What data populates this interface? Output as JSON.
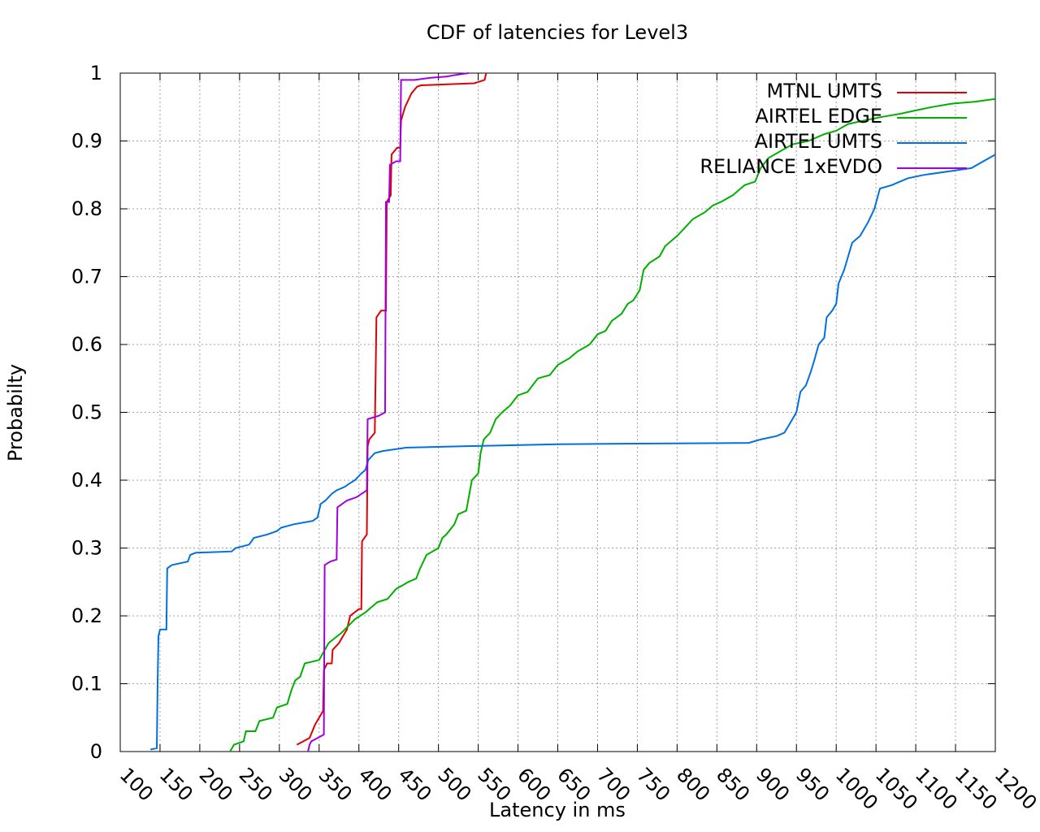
{
  "chart_data": {
    "type": "line",
    "title": "CDF of latencies for Level3",
    "xlabel": "Latency in ms",
    "ylabel": "Probabilty",
    "xlim": [
      100,
      1200
    ],
    "ylim": [
      0,
      1
    ],
    "x_ticks": [
      "100",
      "150",
      "200",
      "250",
      "300",
      "350",
      "400",
      "450",
      "500",
      "550",
      "600",
      "650",
      "700",
      "750",
      "800",
      "850",
      "900",
      "950",
      "1000",
      "1050",
      "1100",
      "1150",
      "1200"
    ],
    "y_ticks": [
      "0",
      "0.1",
      "0.2",
      "0.3",
      "0.4",
      "0.5",
      "0.6",
      "0.7",
      "0.8",
      "0.9",
      "1"
    ],
    "grid": true,
    "legend_position": "top-right",
    "series": [
      {
        "name": "MTNL UMTS",
        "color": "#e00000",
        "points": [
          [
            322,
            0.01
          ],
          [
            338,
            0.02
          ],
          [
            345,
            0.04
          ],
          [
            350,
            0.05
          ],
          [
            355,
            0.06
          ],
          [
            356,
            0.12
          ],
          [
            360,
            0.13
          ],
          [
            366,
            0.13
          ],
          [
            367,
            0.15
          ],
          [
            375,
            0.16
          ],
          [
            380,
            0.17
          ],
          [
            385,
            0.18
          ],
          [
            387,
            0.19
          ],
          [
            389,
            0.2
          ],
          [
            400,
            0.21
          ],
          [
            403,
            0.21
          ],
          [
            404,
            0.31
          ],
          [
            410,
            0.32
          ],
          [
            411,
            0.45
          ],
          [
            413,
            0.46
          ],
          [
            420,
            0.47
          ],
          [
            422,
            0.64
          ],
          [
            428,
            0.65
          ],
          [
            434,
            0.65
          ],
          [
            435,
            0.81
          ],
          [
            440,
            0.82
          ],
          [
            441,
            0.88
          ],
          [
            448,
            0.89
          ],
          [
            452,
            0.89
          ],
          [
            453,
            0.93
          ],
          [
            458,
            0.95
          ],
          [
            462,
            0.96
          ],
          [
            466,
            0.97
          ],
          [
            473,
            0.98
          ],
          [
            478,
            0.982
          ],
          [
            545,
            0.985
          ],
          [
            558,
            0.99
          ],
          [
            560,
            1.0
          ]
        ]
      },
      {
        "name": "AIRTEL EDGE",
        "color": "#00b000",
        "points": [
          [
            238,
            0
          ],
          [
            243,
            0.01
          ],
          [
            255,
            0.015
          ],
          [
            258,
            0.03
          ],
          [
            270,
            0.03
          ],
          [
            275,
            0.045
          ],
          [
            292,
            0.05
          ],
          [
            297,
            0.065
          ],
          [
            310,
            0.07
          ],
          [
            315,
            0.09
          ],
          [
            320,
            0.105
          ],
          [
            326,
            0.11
          ],
          [
            332,
            0.13
          ],
          [
            350,
            0.135
          ],
          [
            362,
            0.16
          ],
          [
            378,
            0.175
          ],
          [
            395,
            0.195
          ],
          [
            408,
            0.205
          ],
          [
            423,
            0.22
          ],
          [
            436,
            0.225
          ],
          [
            447,
            0.24
          ],
          [
            455,
            0.245
          ],
          [
            462,
            0.25
          ],
          [
            472,
            0.255
          ],
          [
            477,
            0.27
          ],
          [
            485,
            0.29
          ],
          [
            500,
            0.3
          ],
          [
            505,
            0.315
          ],
          [
            510,
            0.32
          ],
          [
            520,
            0.335
          ],
          [
            525,
            0.35
          ],
          [
            535,
            0.355
          ],
          [
            542,
            0.4
          ],
          [
            550,
            0.41
          ],
          [
            553,
            0.44
          ],
          [
            557,
            0.46
          ],
          [
            565,
            0.47
          ],
          [
            572,
            0.49
          ],
          [
            580,
            0.5
          ],
          [
            590,
            0.51
          ],
          [
            600,
            0.525
          ],
          [
            612,
            0.53
          ],
          [
            625,
            0.55
          ],
          [
            640,
            0.555
          ],
          [
            650,
            0.57
          ],
          [
            665,
            0.58
          ],
          [
            675,
            0.59
          ],
          [
            690,
            0.6
          ],
          [
            700,
            0.615
          ],
          [
            710,
            0.62
          ],
          [
            718,
            0.635
          ],
          [
            730,
            0.645
          ],
          [
            738,
            0.66
          ],
          [
            745,
            0.665
          ],
          [
            753,
            0.68
          ],
          [
            758,
            0.71
          ],
          [
            765,
            0.72
          ],
          [
            778,
            0.73
          ],
          [
            785,
            0.745
          ],
          [
            800,
            0.76
          ],
          [
            812,
            0.775
          ],
          [
            820,
            0.785
          ],
          [
            835,
            0.795
          ],
          [
            845,
            0.805
          ],
          [
            855,
            0.81
          ],
          [
            870,
            0.82
          ],
          [
            885,
            0.835
          ],
          [
            898,
            0.84
          ],
          [
            905,
            0.86
          ],
          [
            915,
            0.875
          ],
          [
            930,
            0.885
          ],
          [
            945,
            0.895
          ],
          [
            965,
            0.9
          ],
          [
            985,
            0.91
          ],
          [
            1000,
            0.915
          ],
          [
            1015,
            0.925
          ],
          [
            1035,
            0.93
          ],
          [
            1055,
            0.935
          ],
          [
            1080,
            0.94
          ],
          [
            1100,
            0.945
          ],
          [
            1120,
            0.95
          ],
          [
            1145,
            0.955
          ],
          [
            1175,
            0.958
          ],
          [
            1200,
            0.962
          ]
        ]
      },
      {
        "name": "AIRTEL UMTS",
        "color": "#0070e0",
        "points": [
          [
            138,
            0.003
          ],
          [
            146,
            0.005
          ],
          [
            147,
            0.1
          ],
          [
            148,
            0.17
          ],
          [
            150,
            0.18
          ],
          [
            158,
            0.18
          ],
          [
            159,
            0.27
          ],
          [
            165,
            0.275
          ],
          [
            185,
            0.28
          ],
          [
            188,
            0.29
          ],
          [
            195,
            0.293
          ],
          [
            240,
            0.295
          ],
          [
            245,
            0.3
          ],
          [
            262,
            0.305
          ],
          [
            268,
            0.315
          ],
          [
            285,
            0.32
          ],
          [
            297,
            0.325
          ],
          [
            302,
            0.33
          ],
          [
            318,
            0.335
          ],
          [
            342,
            0.34
          ],
          [
            348,
            0.345
          ],
          [
            352,
            0.365
          ],
          [
            358,
            0.37
          ],
          [
            366,
            0.38
          ],
          [
            372,
            0.385
          ],
          [
            382,
            0.39
          ],
          [
            388,
            0.395
          ],
          [
            395,
            0.4
          ],
          [
            403,
            0.41
          ],
          [
            408,
            0.415
          ],
          [
            412,
            0.43
          ],
          [
            420,
            0.44
          ],
          [
            430,
            0.443
          ],
          [
            460,
            0.448
          ],
          [
            530,
            0.45
          ],
          [
            650,
            0.453
          ],
          [
            890,
            0.455
          ],
          [
            905,
            0.46
          ],
          [
            925,
            0.465
          ],
          [
            935,
            0.47
          ],
          [
            940,
            0.48
          ],
          [
            945,
            0.49
          ],
          [
            950,
            0.5
          ],
          [
            955,
            0.53
          ],
          [
            962,
            0.54
          ],
          [
            968,
            0.56
          ],
          [
            972,
            0.575
          ],
          [
            978,
            0.6
          ],
          [
            985,
            0.61
          ],
          [
            988,
            0.64
          ],
          [
            995,
            0.65
          ],
          [
            1000,
            0.66
          ],
          [
            1003,
            0.69
          ],
          [
            1010,
            0.71
          ],
          [
            1015,
            0.73
          ],
          [
            1020,
            0.75
          ],
          [
            1030,
            0.76
          ],
          [
            1040,
            0.78
          ],
          [
            1048,
            0.8
          ],
          [
            1055,
            0.83
          ],
          [
            1070,
            0.835
          ],
          [
            1080,
            0.84
          ],
          [
            1090,
            0.845
          ],
          [
            1110,
            0.85
          ],
          [
            1140,
            0.855
          ],
          [
            1170,
            0.86
          ],
          [
            1185,
            0.87
          ],
          [
            1200,
            0.88
          ]
        ]
      },
      {
        "name": "RELIANCE 1xEVDO",
        "color": "#a000e0",
        "points": [
          [
            336,
            0
          ],
          [
            338,
            0.01
          ],
          [
            340,
            0.015
          ],
          [
            348,
            0.02
          ],
          [
            356,
            0.025
          ],
          [
            357,
            0.275
          ],
          [
            364,
            0.28
          ],
          [
            372,
            0.283
          ],
          [
            373,
            0.36
          ],
          [
            385,
            0.37
          ],
          [
            397,
            0.375
          ],
          [
            410,
            0.385
          ],
          [
            411,
            0.49
          ],
          [
            425,
            0.495
          ],
          [
            433,
            0.5
          ],
          [
            434,
            0.81
          ],
          [
            438,
            0.81
          ],
          [
            439,
            0.865
          ],
          [
            447,
            0.87
          ],
          [
            452,
            0.87
          ],
          [
            453,
            0.99
          ],
          [
            470,
            0.99
          ],
          [
            490,
            0.993
          ],
          [
            510,
            0.995
          ],
          [
            525,
            0.998
          ],
          [
            538,
            1.0
          ]
        ]
      }
    ]
  }
}
